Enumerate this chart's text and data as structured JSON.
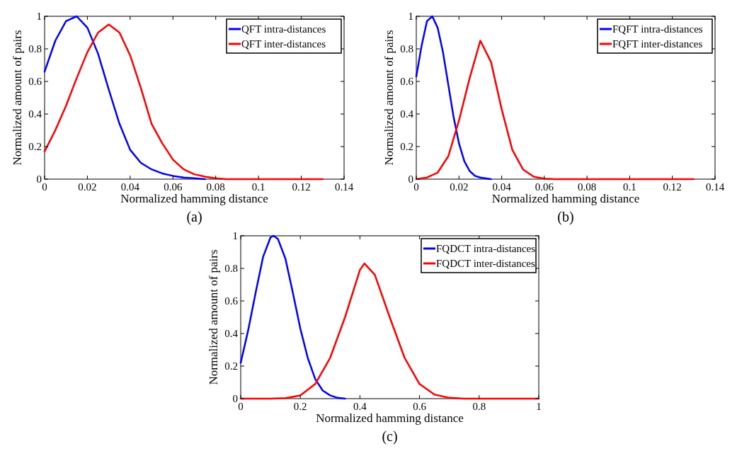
{
  "chart_data": [
    {
      "type": "line",
      "title": "(a)",
      "xlabel": "Normalized hamming distance",
      "ylabel": "Normalized amount of pairs",
      "xlim": [
        0,
        0.14
      ],
      "xticks": [
        0,
        0.02,
        0.04,
        0.06,
        0.08,
        0.1,
        0.12,
        0.14
      ],
      "ylim": [
        0,
        1
      ],
      "yticks": [
        0,
        0.2,
        0.4,
        0.6,
        0.8,
        1
      ],
      "legend": "top right",
      "grid": false,
      "marker": "none",
      "line_style": "solid",
      "series": [
        {
          "name": "QFT intra-distances",
          "color": "#0000ff",
          "x": [
            0,
            0.005,
            0.01,
            0.015,
            0.02,
            0.025,
            0.03,
            0.035,
            0.04,
            0.045,
            0.05,
            0.055,
            0.06,
            0.065,
            0.07,
            0.075
          ],
          "values": [
            0.66,
            0.85,
            0.97,
            1,
            0.93,
            0.77,
            0.55,
            0.34,
            0.18,
            0.1,
            0.06,
            0.035,
            0.02,
            0.01,
            0.005,
            0
          ]
        },
        {
          "name": "QFT inter-distances",
          "color": "#ff0000",
          "x": [
            0,
            0.005,
            0.01,
            0.015,
            0.02,
            0.025,
            0.03,
            0.035,
            0.04,
            0.045,
            0.05,
            0.055,
            0.06,
            0.065,
            0.07,
            0.075,
            0.08,
            0.085,
            0.09,
            0.1,
            0.11,
            0.12,
            0.13
          ],
          "values": [
            0.17,
            0.3,
            0.45,
            0.62,
            0.78,
            0.9,
            0.95,
            0.9,
            0.76,
            0.56,
            0.34,
            0.22,
            0.12,
            0.06,
            0.03,
            0.015,
            0.005,
            0,
            0,
            0,
            0,
            0,
            0
          ]
        }
      ]
    },
    {
      "type": "line",
      "title": "(b)",
      "xlabel": "Normalized hamming distance",
      "ylabel": "Normalized amount of pairs",
      "xlim": [
        0,
        0.14
      ],
      "xticks": [
        0,
        0.02,
        0.04,
        0.06,
        0.08,
        0.1,
        0.12,
        0.14
      ],
      "ylim": [
        0,
        1
      ],
      "yticks": [
        0,
        0.2,
        0.4,
        0.6,
        0.8,
        1
      ],
      "legend": "top right",
      "grid": false,
      "marker": "none",
      "line_style": "solid",
      "series": [
        {
          "name": "FQFT intra-distances",
          "color": "#0000ff",
          "x": [
            0,
            0.0025,
            0.005,
            0.0075,
            0.01,
            0.0125,
            0.015,
            0.0175,
            0.02,
            0.0225,
            0.025,
            0.0275,
            0.03,
            0.035
          ],
          "values": [
            0.63,
            0.82,
            0.97,
            1,
            0.93,
            0.78,
            0.58,
            0.38,
            0.22,
            0.11,
            0.05,
            0.02,
            0.01,
            0
          ]
        },
        {
          "name": "FQFT inter-distances",
          "color": "#ff0000",
          "x": [
            0,
            0.005,
            0.01,
            0.015,
            0.02,
            0.025,
            0.03,
            0.035,
            0.04,
            0.045,
            0.05,
            0.055,
            0.06,
            0.065,
            0.08,
            0.1,
            0.12,
            0.13
          ],
          "values": [
            0,
            0.01,
            0.04,
            0.14,
            0.36,
            0.62,
            0.85,
            0.72,
            0.43,
            0.18,
            0.06,
            0.015,
            0.003,
            0,
            0,
            0,
            0,
            0
          ]
        }
      ]
    },
    {
      "type": "line",
      "title": "(c)",
      "xlabel": "Normalized hamming distance",
      "ylabel": "Normalized amount of pairs",
      "xlim": [
        0,
        1
      ],
      "xticks": [
        0,
        0.2,
        0.4,
        0.6,
        0.8,
        1
      ],
      "ylim": [
        0,
        1
      ],
      "yticks": [
        0,
        0.2,
        0.4,
        0.6,
        0.8,
        1
      ],
      "legend": "top right",
      "grid": false,
      "marker": "none",
      "line_style": "solid",
      "series": [
        {
          "name": "FQDCT intra-distances",
          "color": "#0000ff",
          "x": [
            0,
            0.025,
            0.05,
            0.075,
            0.1,
            0.11,
            0.125,
            0.15,
            0.175,
            0.2,
            0.225,
            0.25,
            0.275,
            0.3,
            0.325,
            0.35
          ],
          "values": [
            0.22,
            0.42,
            0.65,
            0.87,
            0.99,
            1,
            0.98,
            0.86,
            0.65,
            0.43,
            0.25,
            0.12,
            0.05,
            0.02,
            0.005,
            0
          ]
        },
        {
          "name": "FQDCT inter-distances",
          "color": "#ff0000",
          "x": [
            0,
            0.1,
            0.15,
            0.2,
            0.25,
            0.3,
            0.35,
            0.4,
            0.415,
            0.45,
            0.5,
            0.55,
            0.6,
            0.65,
            0.7,
            0.75,
            0.9,
            1
          ],
          "values": [
            0,
            0,
            0.003,
            0.02,
            0.09,
            0.25,
            0.5,
            0.79,
            0.83,
            0.76,
            0.5,
            0.25,
            0.09,
            0.025,
            0.005,
            0,
            0,
            0
          ]
        }
      ]
    }
  ]
}
